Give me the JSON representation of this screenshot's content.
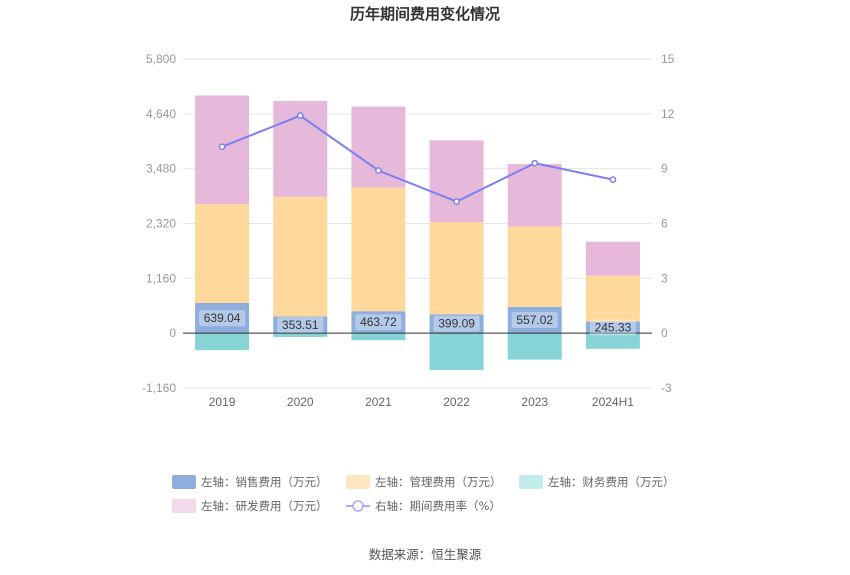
{
  "chart_data": {
    "type": "bar",
    "title": "历年期间费用变化情况",
    "categories": [
      "2019",
      "2020",
      "2021",
      "2022",
      "2023",
      "2024H1"
    ],
    "left_axis": {
      "min": -1160,
      "max": 5800,
      "ticks": [
        "-1,160",
        "0",
        "1,160",
        "2,320",
        "3,480",
        "4,640",
        "5,800"
      ],
      "tick_values": [
        -1160,
        0,
        1160,
        2320,
        3480,
        4640,
        5800
      ]
    },
    "right_axis": {
      "min": -3,
      "max": 15,
      "ticks": [
        "-3",
        "0",
        "3",
        "6",
        "9",
        "12",
        "15"
      ],
      "tick_values": [
        -3,
        0,
        3,
        6,
        9,
        12,
        15
      ]
    },
    "series": [
      {
        "name": "左轴：销售费用（万元）",
        "axis": "left",
        "kind": "bar",
        "color": "#8eaedd",
        "values": [
          639.04,
          353.51,
          463.72,
          399.09,
          557.02,
          245.33
        ],
        "labels": [
          "639.04",
          "353.51",
          "463.72",
          "399.09",
          "557.02",
          "245.33"
        ]
      },
      {
        "name": "左轴：管理费用（万元）",
        "axis": "left",
        "kind": "bar",
        "color": "#ffd99b",
        "values": [
          2090,
          2530,
          2620,
          1950,
          1700,
          970
        ]
      },
      {
        "name": "左轴：财务费用（万元）",
        "axis": "left",
        "kind": "bar",
        "color": "#86d4d6",
        "values": [
          -360,
          -80,
          -150,
          -780,
          -560,
          -330
        ]
      },
      {
        "name": "左轴：研发费用（万元）",
        "axis": "left",
        "kind": "bar",
        "color": "#e6b8d9",
        "values": [
          2300,
          2030,
          1710,
          1730,
          1320,
          720
        ]
      },
      {
        "name": "右轴：期间费用率（%）",
        "axis": "right",
        "kind": "line",
        "color": "#7c7ff0",
        "values": [
          10.2,
          11.9,
          8.9,
          7.2,
          9.3,
          8.4
        ]
      }
    ],
    "legend_position": "bottom"
  },
  "legend": [
    {
      "label": "左轴：销售费用（万元）",
      "color": "#8eaedd",
      "kind": "box"
    },
    {
      "label": "左轴：管理费用（万元）",
      "color": "#ffe7c2",
      "kind": "box"
    },
    {
      "label": "左轴：财务费用（万元）",
      "color": "#c2ecec",
      "kind": "box"
    },
    {
      "label": "左轴：研发费用（万元）",
      "color": "#f2d9ec",
      "kind": "box"
    },
    {
      "label": "右轴：期间费用率（%）",
      "color": "#a9abf5",
      "kind": "line"
    }
  ],
  "source": "数据来源：恒生聚源"
}
